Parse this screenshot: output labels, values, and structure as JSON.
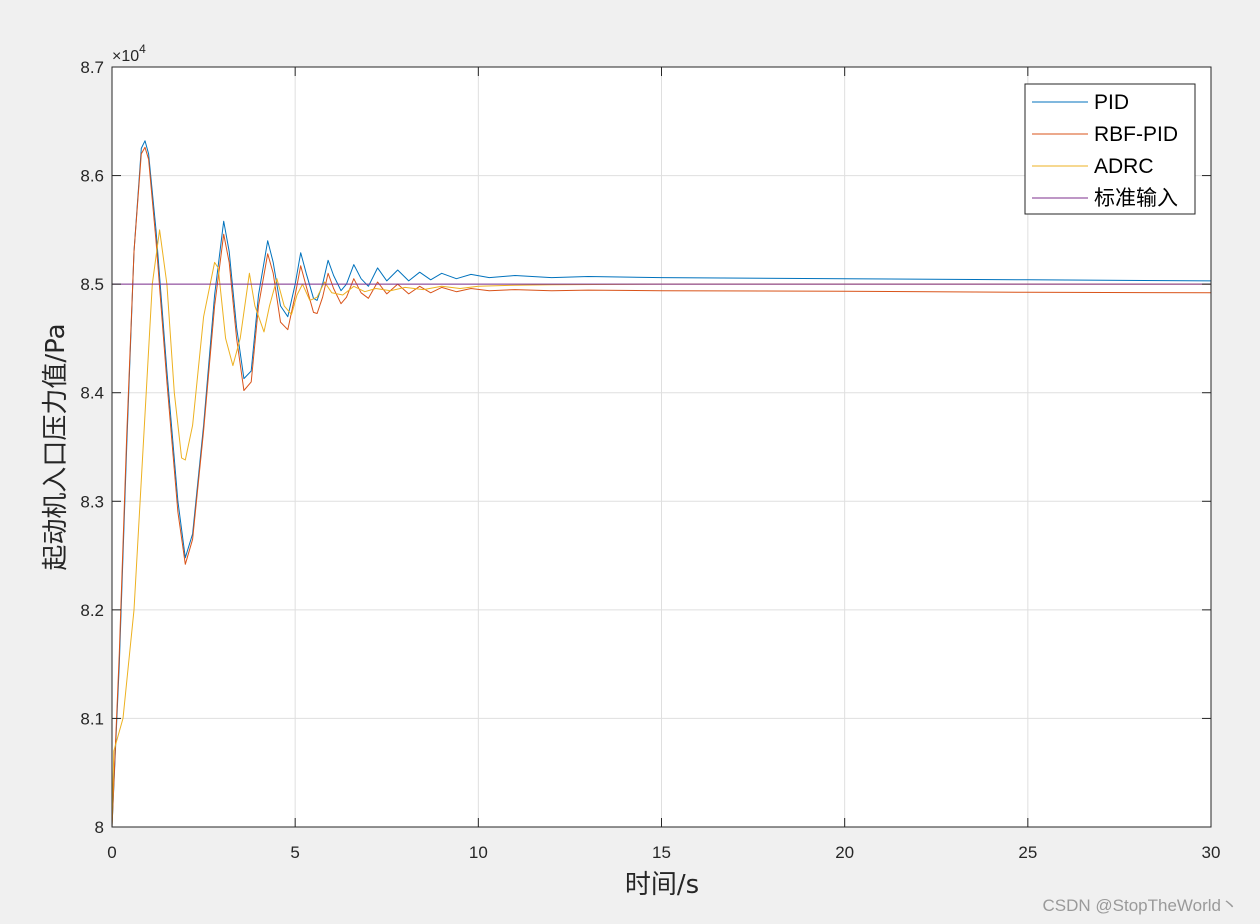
{
  "chart_data": {
    "type": "line",
    "xlabel": "时间/s",
    "ylabel": "起动机入口压力值/Pa",
    "xlim": [
      0,
      30
    ],
    "ylim": [
      80000,
      87000
    ],
    "xticks": [
      0,
      5,
      10,
      15,
      20,
      25,
      30
    ],
    "xtick_labels": [
      "0",
      "5",
      "10",
      "15",
      "20",
      "25",
      "30"
    ],
    "yticks": [
      80000,
      81000,
      82000,
      83000,
      84000,
      85000,
      86000,
      87000
    ],
    "ytick_labels": [
      "8",
      "8.1",
      "8.2",
      "8.3",
      "8.4",
      "8.5",
      "8.6",
      "8.7"
    ],
    "y_exponent_base": "×10",
    "y_exponent_power": "4",
    "grid": true,
    "legend_position": "top-right",
    "series": [
      {
        "name": "PID",
        "color": "#0072BD",
        "points": [
          [
            0,
            80000
          ],
          [
            0.2,
            81500
          ],
          [
            0.4,
            83500
          ],
          [
            0.6,
            85300
          ],
          [
            0.8,
            86250
          ],
          [
            0.9,
            86320
          ],
          [
            1.0,
            86200
          ],
          [
            1.2,
            85500
          ],
          [
            1.5,
            84200
          ],
          [
            1.8,
            83000
          ],
          [
            2.0,
            82480
          ],
          [
            2.2,
            82700
          ],
          [
            2.5,
            83700
          ],
          [
            2.8,
            84900
          ],
          [
            3.05,
            85580
          ],
          [
            3.2,
            85300
          ],
          [
            3.4,
            84600
          ],
          [
            3.6,
            84130
          ],
          [
            3.8,
            84200
          ],
          [
            4.0,
            84900
          ],
          [
            4.25,
            85400
          ],
          [
            4.4,
            85200
          ],
          [
            4.6,
            84800
          ],
          [
            4.8,
            84700
          ],
          [
            5.0,
            85000
          ],
          [
            5.15,
            85290
          ],
          [
            5.3,
            85100
          ],
          [
            5.5,
            84870
          ],
          [
            5.6,
            84850
          ],
          [
            5.75,
            85000
          ],
          [
            5.9,
            85220
          ],
          [
            6.05,
            85080
          ],
          [
            6.25,
            84940
          ],
          [
            6.4,
            85000
          ],
          [
            6.6,
            85180
          ],
          [
            6.8,
            85050
          ],
          [
            7.0,
            84980
          ],
          [
            7.25,
            85150
          ],
          [
            7.5,
            85030
          ],
          [
            7.8,
            85130
          ],
          [
            8.1,
            85030
          ],
          [
            8.4,
            85110
          ],
          [
            8.7,
            85040
          ],
          [
            9.0,
            85100
          ],
          [
            9.4,
            85050
          ],
          [
            9.8,
            85090
          ],
          [
            10.3,
            85060
          ],
          [
            11.0,
            85080
          ],
          [
            12.0,
            85060
          ],
          [
            13.0,
            85070
          ],
          [
            15.0,
            85060
          ],
          [
            20.0,
            85050
          ],
          [
            25.0,
            85040
          ],
          [
            30.0,
            85030
          ]
        ]
      },
      {
        "name": "RBF-PID",
        "color": "#D95319",
        "points": [
          [
            0,
            80000
          ],
          [
            0.2,
            81600
          ],
          [
            0.4,
            83600
          ],
          [
            0.6,
            85300
          ],
          [
            0.8,
            86200
          ],
          [
            0.9,
            86260
          ],
          [
            1.0,
            86150
          ],
          [
            1.2,
            85400
          ],
          [
            1.5,
            84100
          ],
          [
            1.8,
            82900
          ],
          [
            2.0,
            82420
          ],
          [
            2.2,
            82650
          ],
          [
            2.5,
            83650
          ],
          [
            2.8,
            84800
          ],
          [
            3.05,
            85460
          ],
          [
            3.2,
            85200
          ],
          [
            3.4,
            84500
          ],
          [
            3.6,
            84020
          ],
          [
            3.8,
            84100
          ],
          [
            4.0,
            84800
          ],
          [
            4.25,
            85280
          ],
          [
            4.4,
            85100
          ],
          [
            4.6,
            84650
          ],
          [
            4.8,
            84580
          ],
          [
            5.0,
            84900
          ],
          [
            5.15,
            85170
          ],
          [
            5.3,
            84980
          ],
          [
            5.5,
            84740
          ],
          [
            5.6,
            84730
          ],
          [
            5.75,
            84880
          ],
          [
            5.9,
            85100
          ],
          [
            6.05,
            84960
          ],
          [
            6.25,
            84820
          ],
          [
            6.4,
            84880
          ],
          [
            6.6,
            85050
          ],
          [
            6.8,
            84920
          ],
          [
            7.0,
            84870
          ],
          [
            7.25,
            85020
          ],
          [
            7.5,
            84910
          ],
          [
            7.8,
            85000
          ],
          [
            8.1,
            84910
          ],
          [
            8.4,
            84980
          ],
          [
            8.7,
            84920
          ],
          [
            9.0,
            84970
          ],
          [
            9.4,
            84930
          ],
          [
            9.8,
            84960
          ],
          [
            10.3,
            84940
          ],
          [
            11.0,
            84950
          ],
          [
            12.0,
            84940
          ],
          [
            13.0,
            84945
          ],
          [
            15.0,
            84940
          ],
          [
            20.0,
            84935
          ],
          [
            25.0,
            84925
          ],
          [
            30.0,
            84920
          ]
        ]
      },
      {
        "name": "ADRC",
        "color": "#EDB120",
        "points": [
          [
            0,
            80000
          ],
          [
            0.05,
            80700
          ],
          [
            0.3,
            81000
          ],
          [
            0.6,
            82000
          ],
          [
            0.9,
            83800
          ],
          [
            1.1,
            85000
          ],
          [
            1.3,
            85500
          ],
          [
            1.5,
            85000
          ],
          [
            1.7,
            84000
          ],
          [
            1.9,
            83400
          ],
          [
            2.0,
            83380
          ],
          [
            2.2,
            83700
          ],
          [
            2.5,
            84700
          ],
          [
            2.8,
            85200
          ],
          [
            2.9,
            85150
          ],
          [
            3.1,
            84500
          ],
          [
            3.3,
            84250
          ],
          [
            3.5,
            84500
          ],
          [
            3.75,
            85100
          ],
          [
            3.9,
            84800
          ],
          [
            4.15,
            84560
          ],
          [
            4.3,
            84800
          ],
          [
            4.5,
            85050
          ],
          [
            4.7,
            84800
          ],
          [
            4.9,
            84720
          ],
          [
            5.05,
            84900
          ],
          [
            5.2,
            85000
          ],
          [
            5.4,
            84850
          ],
          [
            5.6,
            84880
          ],
          [
            5.8,
            85020
          ],
          [
            6.0,
            84920
          ],
          [
            6.3,
            84900
          ],
          [
            6.6,
            84980
          ],
          [
            6.9,
            84930
          ],
          [
            7.2,
            84960
          ],
          [
            7.6,
            84940
          ],
          [
            8.0,
            84970
          ],
          [
            8.5,
            84950
          ],
          [
            9.0,
            84980
          ],
          [
            9.5,
            84960
          ],
          [
            10.0,
            84980
          ],
          [
            11.0,
            84990
          ],
          [
            12.0,
            84995
          ],
          [
            15.0,
            85000
          ],
          [
            30.0,
            85000
          ]
        ]
      },
      {
        "name": "标准输入",
        "color": "#7E2F8E",
        "points": [
          [
            0,
            85000
          ],
          [
            30,
            85000
          ]
        ]
      }
    ]
  },
  "watermark": "CSDN @StopTheWorld丶"
}
